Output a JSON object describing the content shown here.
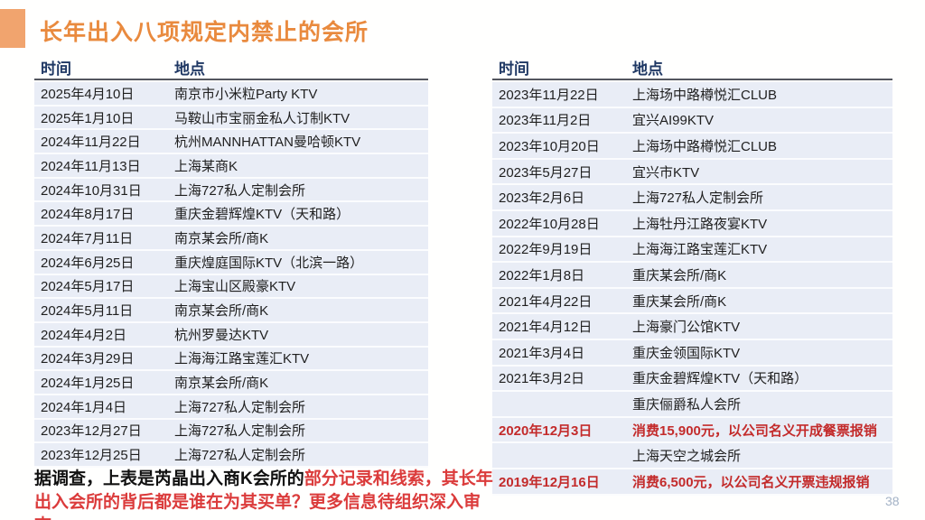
{
  "slide": {
    "title": "长年出入八项规定内禁止的会所",
    "page_number": "38"
  },
  "colors": {
    "accent_square": "#F1A46E",
    "title_orange": "#E98A3E",
    "header_navy": "#1F3864",
    "header_underline": "#53565F",
    "row_bg": "#E9EDF6",
    "cell_text": "#1F1F1F",
    "table_red": "#C32B2B",
    "note_black": "#111111",
    "note_red": "#DB3B3B",
    "page_num": "#A3B2C6"
  },
  "tables": [
    {
      "columns": {
        "time": "时间",
        "place": "地点"
      },
      "rows": [
        {
          "time": "2025年4月10日",
          "place": "南京市小米粒Party KTV",
          "style": "normal"
        },
        {
          "time": "2025年1月10日",
          "place": "马鞍山市宝丽金私人订制KTV",
          "style": "normal"
        },
        {
          "time": "2024年11月22日",
          "place": "杭州MANNHATTAN曼哈顿KTV",
          "style": "normal"
        },
        {
          "time": "2024年11月13日",
          "place": "上海某商K",
          "style": "normal"
        },
        {
          "time": "2024年10月31日",
          "place": "上海727私人定制会所",
          "style": "normal"
        },
        {
          "time": "2024年8月17日",
          "place": "重庆金碧辉煌KTV（天和路）",
          "style": "normal"
        },
        {
          "time": "2024年7月11日",
          "place": "南京某会所/商K",
          "style": "normal"
        },
        {
          "time": "2024年6月25日",
          "place": "重庆煌庭国际KTV（北滨一路）",
          "style": "normal"
        },
        {
          "time": "2024年5月17日",
          "place": "上海宝山区殿豪KTV",
          "style": "normal"
        },
        {
          "time": "2024年5月11日",
          "place": "南京某会所/商K",
          "style": "normal"
        },
        {
          "time": "2024年4月2日",
          "place": "杭州罗曼达KTV",
          "style": "normal"
        },
        {
          "time": "2024年3月29日",
          "place": "上海海江路宝莲汇KTV",
          "style": "normal"
        },
        {
          "time": "2024年1月25日",
          "place": "南京某会所/商K",
          "style": "normal"
        },
        {
          "time": "2024年1月4日",
          "place": "上海727私人定制会所",
          "style": "normal"
        },
        {
          "time": "2023年12月27日",
          "place": "上海727私人定制会所",
          "style": "normal"
        },
        {
          "time": "2023年12月25日",
          "place": "上海727私人定制会所",
          "style": "normal"
        }
      ]
    },
    {
      "columns": {
        "time": "时间",
        "place": "地点"
      },
      "rows": [
        {
          "time": "2023年11月22日",
          "place": "上海场中路樽悦汇CLUB",
          "style": "normal"
        },
        {
          "time": "2023年11月2日",
          "place": "宜兴AI99KTV",
          "style": "normal"
        },
        {
          "time": "2023年10月20日",
          "place": "上海场中路樽悦汇CLUB",
          "style": "normal"
        },
        {
          "time": "2023年5月27日",
          "place": "宜兴市KTV",
          "style": "normal"
        },
        {
          "time": "2023年2月6日",
          "place": "上海727私人定制会所",
          "style": "normal"
        },
        {
          "time": "2022年10月28日",
          "place": "上海牡丹江路夜宴KTV",
          "style": "normal"
        },
        {
          "time": "2022年9月19日",
          "place": "上海海江路宝莲汇KTV",
          "style": "normal"
        },
        {
          "time": "2022年1月8日",
          "place": "重庆某会所/商K",
          "style": "normal"
        },
        {
          "time": "2021年4月22日",
          "place": "重庆某会所/商K",
          "style": "normal"
        },
        {
          "time": "2021年4月12日",
          "place": "上海豪门公馆KTV",
          "style": "normal"
        },
        {
          "time": "2021年3月4日",
          "place": "重庆金领国际KTV",
          "style": "normal"
        },
        {
          "time": "2021年3月2日",
          "place": "重庆金碧辉煌KTV（天和路）",
          "style": "normal"
        },
        {
          "time": "",
          "place": "重庆俪爵私人会所",
          "style": "normal"
        },
        {
          "time": "2020年12月3日",
          "place": "消费15,900元，以公司名义开成餐票报销",
          "style": "red"
        },
        {
          "time": "",
          "place": "上海天空之城会所",
          "style": "normal"
        },
        {
          "time": "2019年12月16日",
          "place": "消费6,500元，以公司名义开票违规报销",
          "style": "red"
        }
      ]
    }
  ],
  "note": {
    "lead": "据调查，上表是芮晶出入商K会所的",
    "emphasis": "部分记录和线索，其长年出入会所的背后都是谁在为其买单？更多信息待组织深入审查。"
  }
}
